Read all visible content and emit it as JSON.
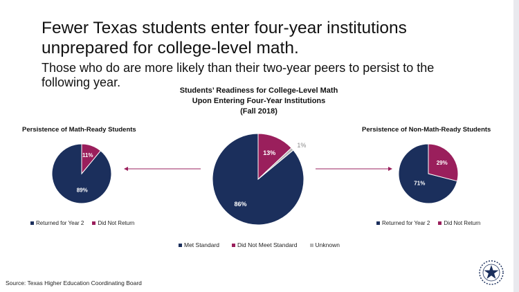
{
  "title": "Fewer Texas students enter four-year institutions unprepared for college-level math.",
  "subtitle": "Those who do are more likely than their two-year peers to persist to the following year.",
  "source": "Source: Texas Higher Education Coordinating Board",
  "colors": {
    "navy": "#1b2f5c",
    "maroon": "#9a1f5c",
    "gray": "#b5b5b5",
    "arrow": "#9a1f5c"
  },
  "icons": {
    "seal": "texas-star-seal-icon"
  },
  "chart_data": [
    {
      "type": "pie",
      "title": "Students' Readiness for College-Level Math Upon Entering Four-Year Institutions (Fall 2018)",
      "title_lines": [
        "Students’ Readiness for College-Level Math",
        "Upon Entering Four-Year Institutions",
        "(Fall 2018)"
      ],
      "slices": [
        {
          "label": "Met Standard",
          "value": 86,
          "text": "86%",
          "color": "#1b2f5c"
        },
        {
          "label": "Did Not Meet Standard",
          "value": 13,
          "text": "13%",
          "color": "#9a1f5c"
        },
        {
          "label": "Unknown",
          "value": 1,
          "text": "1%",
          "color": "#b5b5b5"
        }
      ],
      "legend_position": "bottom"
    },
    {
      "type": "pie",
      "title": "Persistence of Math-Ready Students",
      "slices": [
        {
          "label": "Returned for Year 2",
          "value": 89,
          "text": "89%",
          "color": "#1b2f5c"
        },
        {
          "label": "Did Not Return",
          "value": 11,
          "text": "11%",
          "color": "#9a1f5c"
        }
      ],
      "legend_position": "bottom"
    },
    {
      "type": "pie",
      "title": "Persistence of Non-Math-Ready Students",
      "slices": [
        {
          "label": "Returned for Year 2",
          "value": 71,
          "text": "71%",
          "color": "#1b2f5c"
        },
        {
          "label": "Did Not Return",
          "value": 29,
          "text": "29%",
          "color": "#9a1f5c"
        }
      ],
      "legend_position": "bottom"
    }
  ]
}
